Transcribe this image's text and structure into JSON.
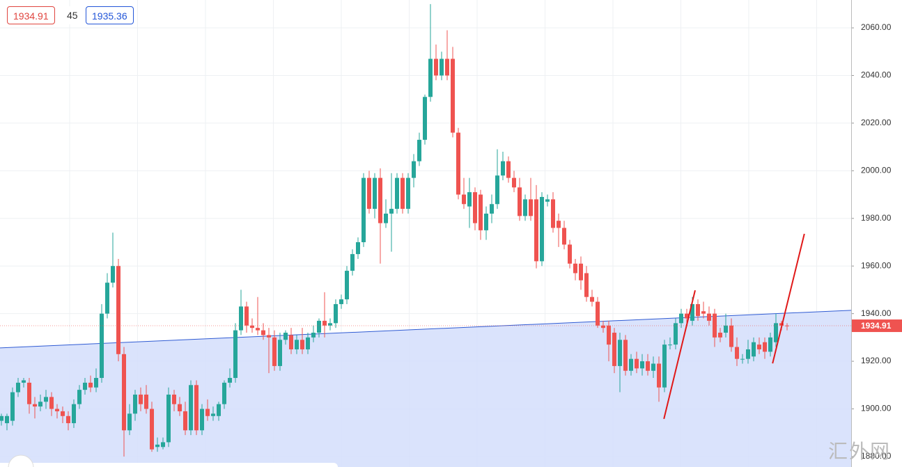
{
  "chart_data": {
    "type": "candlestick",
    "ylim": [
      1875.6,
      2071.7
    ],
    "yticks": [
      {
        "value": 1880,
        "label": "1880.00"
      },
      {
        "value": 1900,
        "label": "1900.00"
      },
      {
        "value": 1920,
        "label": "1920.00"
      },
      {
        "value": 1940,
        "label": "1940.00"
      },
      {
        "value": 1960,
        "label": "1960.00"
      },
      {
        "value": 1980,
        "label": "1980.00"
      },
      {
        "value": 2000,
        "label": "2000.00"
      },
      {
        "value": 2020,
        "label": "2020.00"
      },
      {
        "value": 2040,
        "label": "2040.00"
      },
      {
        "value": 2060,
        "label": "2060.00"
      }
    ],
    "grid": true,
    "up_color": "#26a69a",
    "down_color": "#ef5350",
    "header": {
      "bid": "1934.91",
      "spread": "45",
      "ask": "1935.36"
    },
    "price_tag": 1934.91,
    "watermark": "汇外网",
    "trend_line": {
      "values": [
        1925.6,
        1941.4
      ],
      "color": "#2f5bd3",
      "fill": "#d3defc"
    },
    "drawings": [
      {
        "x": [
          118.9,
          124.5
        ],
        "values": [
          1895.8,
          1949.8
        ],
        "color": "#e01818"
      },
      {
        "x": [
          138.4,
          144.1
        ],
        "values": [
          1919.1,
          1973.5
        ],
        "color": "#e01818"
      }
    ],
    "candles": [
      [
        1895,
        1898,
        1893,
        1897
      ],
      [
        1894,
        1898,
        1891,
        1897
      ],
      [
        1895,
        1909,
        1893,
        1907
      ],
      [
        1907,
        1913,
        1905,
        1911
      ],
      [
        1911,
        1913,
        1909,
        1912
      ],
      [
        1911,
        1913,
        1898,
        1902
      ],
      [
        1902,
        1905,
        1896,
        1901
      ],
      [
        1901,
        1906,
        1899,
        1903
      ],
      [
        1903,
        1908,
        1900,
        1905
      ],
      [
        1905,
        1907,
        1897,
        1900
      ],
      [
        1900,
        1902,
        1896,
        1899
      ],
      [
        1899,
        1901,
        1894,
        1897
      ],
      [
        1897,
        1899,
        1891,
        1894
      ],
      [
        1894,
        1904,
        1892,
        1902
      ],
      [
        1902,
        1910,
        1900,
        1908
      ],
      [
        1908,
        1913,
        1906,
        1911
      ],
      [
        1911,
        1914,
        1907,
        1909
      ],
      [
        1909,
        1917,
        1907,
        1913
      ],
      [
        1913,
        1944,
        1911,
        1940
      ],
      [
        1940,
        1957,
        1938,
        1953
      ],
      [
        1953,
        1974,
        1951,
        1960
      ],
      [
        1960,
        1963,
        1920,
        1923
      ],
      [
        1923,
        1926,
        1880,
        1891
      ],
      [
        1891,
        1902,
        1889,
        1898
      ],
      [
        1898,
        1908,
        1895,
        1906
      ],
      [
        1906,
        1909,
        1899,
        1902
      ],
      [
        1906,
        1910,
        1898,
        1900
      ],
      [
        1900,
        1903,
        1882,
        1883
      ],
      [
        1884,
        1888,
        1882,
        1885
      ],
      [
        1884,
        1888,
        1883,
        1886
      ],
      [
        1886,
        1909,
        1884,
        1906
      ],
      [
        1906,
        1908,
        1899,
        1902
      ],
      [
        1902,
        1905,
        1897,
        1899
      ],
      [
        1899,
        1903,
        1889,
        1891
      ],
      [
        1891,
        1912,
        1889,
        1910
      ],
      [
        1910,
        1912,
        1889,
        1891
      ],
      [
        1891,
        1902,
        1889,
        1900
      ],
      [
        1900,
        1904,
        1895,
        1897
      ],
      [
        1897,
        1901,
        1895,
        1898
      ],
      [
        1897,
        1903,
        1895,
        1902
      ],
      [
        1902,
        1912,
        1900,
        1911
      ],
      [
        1911,
        1917,
        1909,
        1913
      ],
      [
        1913,
        1936,
        1911,
        1933
      ],
      [
        1933,
        1950,
        1931,
        1943
      ],
      [
        1943,
        1945,
        1932,
        1935
      ],
      [
        1935,
        1938,
        1932,
        1934
      ],
      [
        1934,
        1947,
        1931,
        1933
      ],
      [
        1933,
        1936,
        1929,
        1931
      ],
      [
        1931,
        1934,
        1915,
        1930
      ],
      [
        1930,
        1933,
        1916,
        1918
      ],
      [
        1918,
        1932,
        1916,
        1929
      ],
      [
        1929,
        1933,
        1927,
        1932
      ],
      [
        1931,
        1934,
        1923,
        1925
      ],
      [
        1925,
        1931,
        1923,
        1929
      ],
      [
        1929,
        1934,
        1923,
        1925
      ],
      [
        1925,
        1932,
        1923,
        1930
      ],
      [
        1930,
        1935,
        1928,
        1932
      ],
      [
        1932,
        1938,
        1930,
        1937
      ],
      [
        1937,
        1949,
        1930,
        1935
      ],
      [
        1935,
        1938,
        1933,
        1936
      ],
      [
        1936,
        1946,
        1934,
        1944
      ],
      [
        1944,
        1948,
        1942,
        1946
      ],
      [
        1946,
        1960,
        1944,
        1958
      ],
      [
        1958,
        1967,
        1956,
        1965
      ],
      [
        1965,
        1972,
        1963,
        1970
      ],
      [
        1970,
        1999,
        1968,
        1997
      ],
      [
        1997,
        2000,
        1982,
        1984
      ],
      [
        1984,
        1999,
        1980,
        1997
      ],
      [
        1997,
        2001,
        1961,
        1978
      ],
      [
        1978,
        1988,
        1976,
        1982
      ],
      [
        1982,
        1999,
        1966,
        1984
      ],
      [
        1984,
        1999,
        1982,
        1997
      ],
      [
        1997,
        1999,
        1982,
        1984
      ],
      [
        1984,
        1999,
        1982,
        1997
      ],
      [
        1997,
        2007,
        1993,
        2004
      ],
      [
        2004,
        2016,
        2002,
        2013
      ],
      [
        2013,
        2032,
        2011,
        2031
      ],
      [
        2031,
        2070,
        2029,
        2047
      ],
      [
        2047,
        2053,
        2038,
        2040
      ],
      [
        2040,
        2050,
        2038,
        2047
      ],
      [
        2047,
        2059,
        2038,
        2040
      ],
      [
        2047,
        2052,
        2014,
        2016
      ],
      [
        2016,
        2018,
        1988,
        1990
      ],
      [
        1990,
        1997,
        1984,
        1986
      ],
      [
        1985,
        1997,
        1976,
        1991
      ],
      [
        1991,
        1993,
        1975,
        1978
      ],
      [
        1990,
        1992,
        1971,
        1975
      ],
      [
        1975,
        1985,
        1971,
        1982
      ],
      [
        1982,
        1990,
        1978,
        1986
      ],
      [
        1986,
        2009,
        1984,
        1998
      ],
      [
        1998,
        2008,
        1996,
        2004
      ],
      [
        2004,
        2006,
        1995,
        1997
      ],
      [
        1997,
        2000,
        1991,
        1993
      ],
      [
        1993,
        1997,
        1979,
        1981
      ],
      [
        1981,
        1990,
        1979,
        1988
      ],
      [
        1988,
        1997,
        1979,
        1981
      ],
      [
        1988,
        1994,
        1959,
        1962
      ],
      [
        1962,
        1991,
        1960,
        1989
      ],
      [
        1987,
        1990,
        1985,
        1988
      ],
      [
        1988,
        1991,
        1974,
        1976
      ],
      [
        1979,
        1982,
        1968,
        1976
      ],
      [
        1976,
        1979,
        1967,
        1969
      ],
      [
        1969,
        1971,
        1959,
        1961
      ],
      [
        1961,
        1963,
        1954,
        1957
      ],
      [
        1961,
        1964,
        1950,
        1954
      ],
      [
        1957,
        1960,
        1945,
        1947
      ],
      [
        1947,
        1950,
        1943,
        1945
      ],
      [
        1945,
        1947,
        1934,
        1935
      ],
      [
        1935,
        1937,
        1932,
        1934
      ],
      [
        1935,
        1937,
        1920,
        1927
      ],
      [
        1932,
        1934,
        1915,
        1918
      ],
      [
        1918,
        1932,
        1907,
        1929
      ],
      [
        1929,
        1931,
        1914,
        1916
      ],
      [
        1916,
        1923,
        1914,
        1921
      ],
      [
        1921,
        1924,
        1915,
        1917
      ],
      [
        1917,
        1923,
        1914,
        1920
      ],
      [
        1920,
        1923,
        1914,
        1916
      ],
      [
        1916,
        1922,
        1913,
        1919
      ],
      [
        1919,
        1922,
        1903,
        1909
      ],
      [
        1909,
        1929,
        1907,
        1927
      ],
      [
        1927,
        1930,
        1925,
        1927
      ],
      [
        1927,
        1938,
        1925,
        1936
      ],
      [
        1936,
        1942,
        1934,
        1940
      ],
      [
        1940,
        1942,
        1936,
        1938
      ],
      [
        1937,
        1947,
        1935,
        1944
      ],
      [
        1944,
        1946,
        1937,
        1939
      ],
      [
        1941,
        1945,
        1938,
        1940
      ],
      [
        1940,
        1943,
        1935,
        1937
      ],
      [
        1940,
        1942,
        1926,
        1930
      ],
      [
        1932,
        1934,
        1928,
        1930
      ],
      [
        1932,
        1940,
        1930,
        1935
      ],
      [
        1935,
        1938,
        1924,
        1926
      ],
      [
        1926,
        1930,
        1918,
        1921
      ],
      [
        1921,
        1923,
        1919,
        1921
      ],
      [
        1921,
        1929,
        1919,
        1925
      ],
      [
        1922,
        1930,
        1920,
        1928
      ],
      [
        1927,
        1930,
        1923,
        1925
      ],
      [
        1928,
        1930,
        1921,
        1924
      ],
      [
        1924,
        1932,
        1922,
        1930
      ],
      [
        1928,
        1940,
        1926,
        1936
      ],
      [
        1936,
        1937,
        1933,
        1935
      ],
      [
        1935,
        1936,
        1933,
        1934.91
      ]
    ]
  }
}
